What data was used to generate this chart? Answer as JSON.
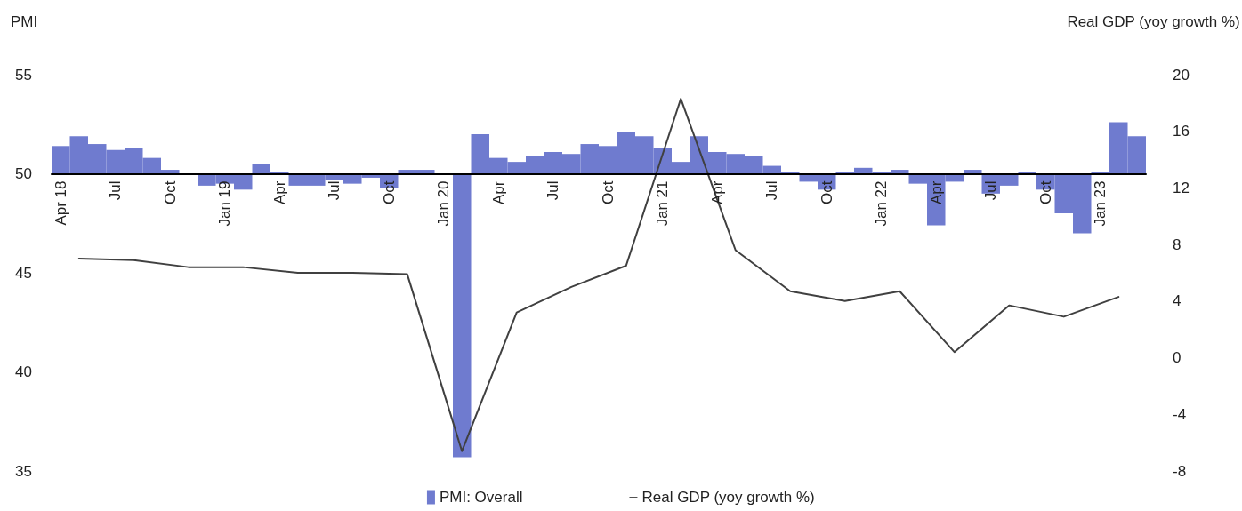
{
  "chart_data": {
    "type": "bar",
    "categories": [
      "Apr 18",
      null,
      null,
      "Jul",
      null,
      null,
      "Oct",
      null,
      null,
      "Jan 19",
      null,
      null,
      "Apr",
      null,
      null,
      "Jul",
      null,
      null,
      "Oct",
      null,
      null,
      "Jan 20",
      null,
      null,
      "Apr",
      null,
      null,
      "Jul",
      null,
      null,
      "Oct",
      null,
      null,
      "Jan 21",
      null,
      null,
      "Apr",
      null,
      null,
      "Jul",
      null,
      null,
      "Oct",
      null,
      null,
      "Jan 22",
      null,
      null,
      "Apr",
      null,
      null,
      "Jul",
      null,
      null,
      "Oct",
      null,
      null,
      "Jan 23",
      null,
      null
    ],
    "ylabel": "PMI",
    "y2label": "Real GDP (yoy growth %)",
    "ylim": [
      35,
      55
    ],
    "yticks": [
      35,
      40,
      45,
      50,
      55
    ],
    "y2lim": [
      -8,
      20
    ],
    "y2ticks": [
      -8,
      -4,
      0,
      4,
      8,
      12,
      16,
      20
    ],
    "series": [
      {
        "name": "PMI: Overall",
        "color": "#6f7bcf",
        "base": [
          50,
          50,
          50,
          50,
          50,
          50,
          50,
          null,
          50,
          50,
          50,
          50,
          50,
          50,
          50,
          50,
          50,
          50,
          50,
          50,
          50,
          null,
          50,
          50,
          50,
          50,
          50,
          50,
          50,
          50,
          50,
          50,
          50,
          50,
          50,
          50,
          50,
          50,
          50,
          50,
          50,
          50,
          50,
          50,
          50,
          50,
          50,
          50,
          50,
          50,
          50,
          50,
          50,
          50,
          50,
          50,
          50,
          50,
          50,
          50
        ],
        "values": [
          1.4,
          1.9,
          1.5,
          1.2,
          1.3,
          0.8,
          0.2,
          null,
          -0.6,
          -0.5,
          -0.8,
          0.5,
          0.1,
          -0.6,
          -0.6,
          -0.3,
          -0.5,
          -0.2,
          -0.7,
          0.2,
          0.2,
          null,
          -14.3,
          2.0,
          0.8,
          0.6,
          0.9,
          1.1,
          1.0,
          1.5,
          1.4,
          2.1,
          1.9,
          1.3,
          0.6,
          1.9,
          1.1,
          1.0,
          0.9,
          0.4,
          0.1,
          -0.4,
          -0.8,
          0.1,
          0.3,
          0.1,
          0.2,
          -0.5,
          -2.6,
          -0.4,
          0.2,
          -1.0,
          -0.6,
          0.1,
          -0.8,
          -2.0,
          -3.0,
          0.1,
          2.6,
          1.9
        ]
      },
      {
        "name": "Real GDP (yoy growth %)",
        "type": "line",
        "axis": "y2",
        "color": "#404040",
        "marker": "none",
        "line_style": "solid",
        "values": [
          null,
          7.0,
          null,
          null,
          6.9,
          null,
          null,
          6.4,
          null,
          null,
          6.4,
          null,
          null,
          6.0,
          null,
          null,
          6.0,
          null,
          null,
          5.9,
          null,
          null,
          -6.6,
          null,
          null,
          3.2,
          null,
          null,
          5.0,
          null,
          null,
          6.5,
          null,
          null,
          18.3,
          null,
          null,
          7.6,
          null,
          null,
          4.7,
          null,
          null,
          4.0,
          null,
          null,
          4.7,
          null,
          null,
          0.4,
          null,
          null,
          3.7,
          null,
          null,
          2.9,
          null,
          null,
          4.3,
          null
        ]
      }
    ],
    "grid": false,
    "legend": "bottom"
  }
}
